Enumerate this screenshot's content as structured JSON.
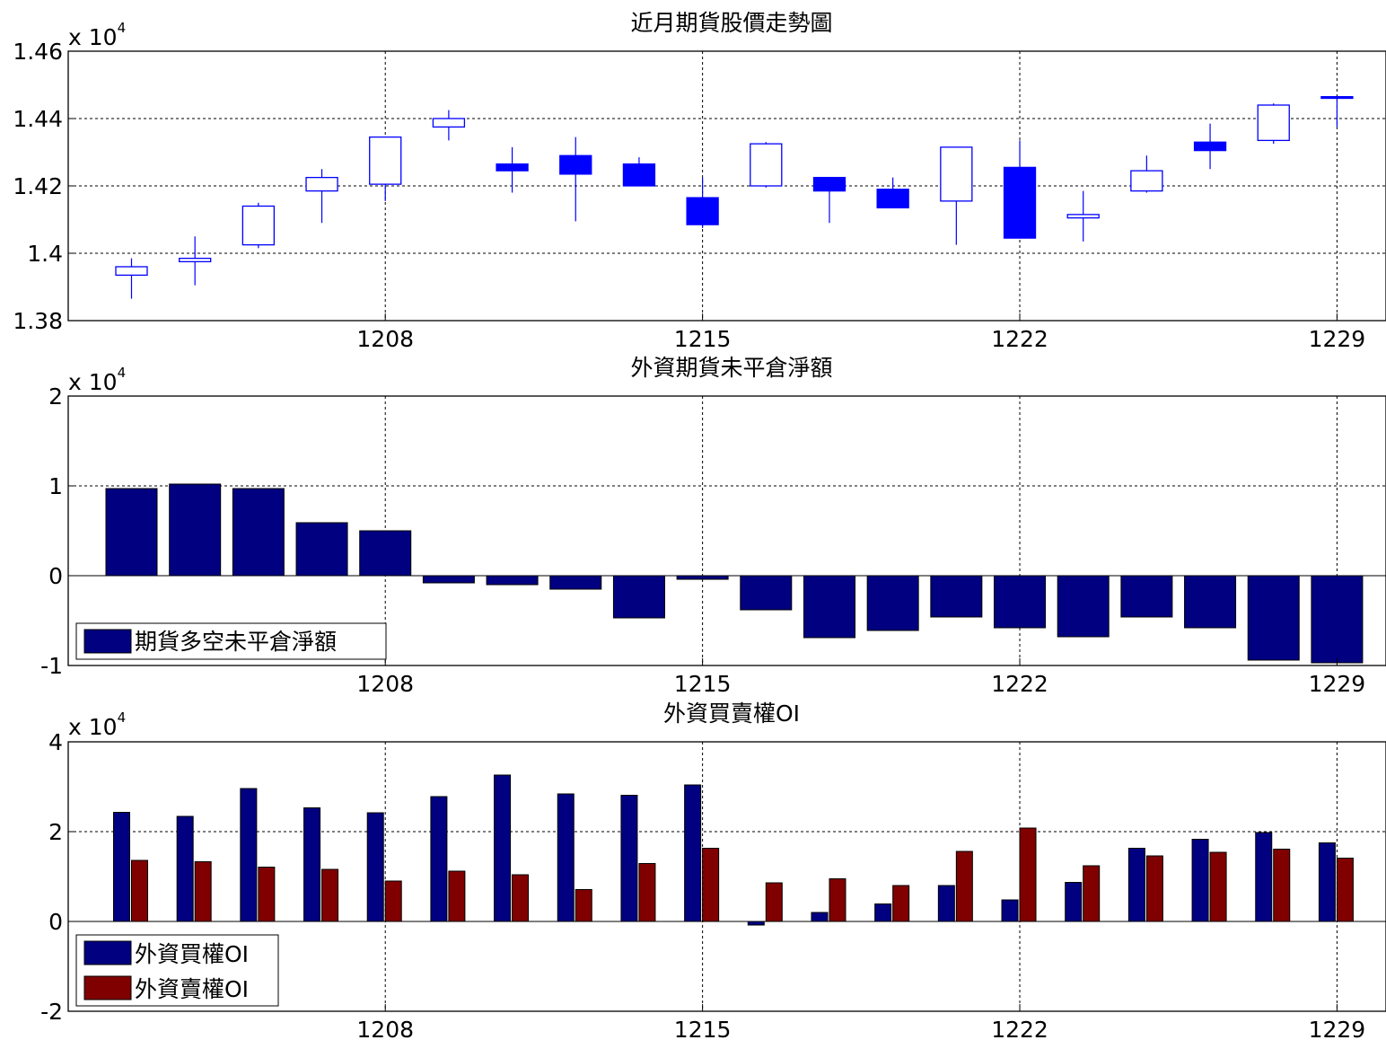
{
  "colors": {
    "candle": "#0000FF",
    "bar_primary": "#000080",
    "bar_secondary": "#800000",
    "grid": "#000000",
    "background": "#FFFFFF"
  },
  "x_tick_labels": [
    "1208",
    "1215",
    "1222",
    "1229"
  ],
  "chart_data": [
    {
      "type": "candlestick",
      "title": "近月期貨股價走勢圖",
      "y_multiplier": "x 10",
      "y_multiplier_exp": "4",
      "yticks": [
        "1.38",
        "1.4",
        "1.42",
        "1.44",
        "1.46"
      ],
      "ylim": [
        13800,
        14600
      ],
      "xticks": [
        "1208",
        "1215",
        "1222",
        "1229"
      ],
      "grid": true,
      "candles": [
        {
          "open": 13935,
          "close": 13960,
          "high": 13985,
          "low": 13865
        },
        {
          "open": 13975,
          "close": 13985,
          "high": 14050,
          "low": 13905
        },
        {
          "open": 14025,
          "close": 14140,
          "high": 14150,
          "low": 14015
        },
        {
          "open": 14185,
          "close": 14225,
          "high": 14250,
          "low": 14090
        },
        {
          "open": 14205,
          "close": 14345,
          "high": 14345,
          "low": 14155
        },
        {
          "open": 14375,
          "close": 14400,
          "high": 14425,
          "low": 14335
        },
        {
          "open": 14265,
          "close": 14245,
          "high": 14315,
          "low": 14180
        },
        {
          "open": 14290,
          "close": 14235,
          "high": 14345,
          "low": 14095
        },
        {
          "open": 14265,
          "close": 14200,
          "high": 14285,
          "low": 14200
        },
        {
          "open": 14165,
          "close": 14085,
          "high": 14225,
          "low": 14075
        },
        {
          "open": 14200,
          "close": 14325,
          "high": 14330,
          "low": 14195
        },
        {
          "open": 14225,
          "close": 14185,
          "high": 14225,
          "low": 14090
        },
        {
          "open": 14190,
          "close": 14135,
          "high": 14225,
          "low": 14135
        },
        {
          "open": 14155,
          "close": 14315,
          "high": 14315,
          "low": 14025
        },
        {
          "open": 14255,
          "close": 14045,
          "high": 14335,
          "low": 14045
        },
        {
          "open": 14105,
          "close": 14115,
          "high": 14185,
          "low": 14035
        },
        {
          "open": 14185,
          "close": 14245,
          "high": 14290,
          "low": 14180
        },
        {
          "open": 14330,
          "close": 14305,
          "high": 14385,
          "low": 14250
        },
        {
          "open": 14335,
          "close": 14440,
          "high": 14445,
          "low": 14325
        },
        {
          "open": 14465,
          "close": 14460,
          "high": 14465,
          "low": 14375
        }
      ]
    },
    {
      "type": "bar",
      "title": "外資期貨未平倉淨額",
      "y_multiplier": "x 10",
      "y_multiplier_exp": "4",
      "yticks": [
        "-1",
        "0",
        "1",
        "2"
      ],
      "ylim": [
        -10000,
        20000
      ],
      "xticks": [
        "1208",
        "1215",
        "1222",
        "1229"
      ],
      "grid": true,
      "legend_position": "lower-left",
      "series": [
        {
          "name": "期貨多空未平倉淨額",
          "values": [
            9700,
            10200,
            9700,
            5900,
            5000,
            -800,
            -1000,
            -1500,
            -4700,
            -400,
            -3800,
            -6900,
            -6100,
            -4600,
            -5800,
            -6800,
            -4600,
            -5800,
            -9400,
            -9700
          ]
        }
      ]
    },
    {
      "type": "bar",
      "title": "外資買賣權OI",
      "y_multiplier": "x 10",
      "y_multiplier_exp": "4",
      "yticks": [
        "-2",
        "0",
        "2",
        "4"
      ],
      "ylim": [
        -20000,
        40000
      ],
      "xticks": [
        "1208",
        "1215",
        "1222",
        "1229"
      ],
      "grid": true,
      "legend_position": "lower-left",
      "series": [
        {
          "name": "外資買權OI",
          "values": [
            24300,
            23400,
            29600,
            25300,
            24200,
            27800,
            32600,
            28400,
            28100,
            30400,
            -800,
            2000,
            3900,
            8000,
            4800,
            8700,
            16300,
            18300,
            19800,
            17500
          ]
        },
        {
          "name": "外資賣權OI",
          "values": [
            13600,
            13300,
            12100,
            11600,
            9000,
            11200,
            10400,
            7100,
            12900,
            16300,
            8600,
            9500,
            8000,
            15600,
            20800,
            12400,
            14600,
            15400,
            16100,
            14100
          ]
        }
      ]
    }
  ]
}
